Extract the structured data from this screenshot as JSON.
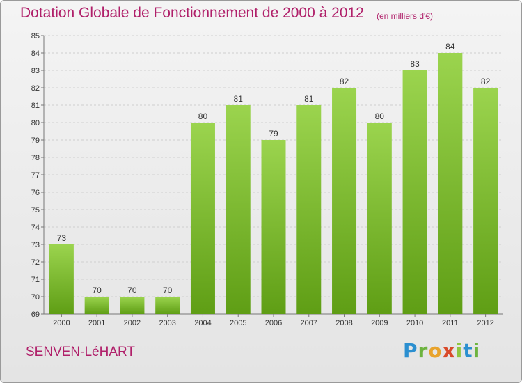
{
  "header": {
    "title": "Dotation Globale de Fonctionnement de 2000 à 2012",
    "unit": "(en milliers d'€)"
  },
  "footer": {
    "place": "SENVEN-LéHART",
    "logo": [
      "P",
      "r",
      "o",
      "x",
      "i",
      "t",
      "i"
    ]
  },
  "colors": {
    "title": "#b0206a",
    "bar_top": "#9bd44e",
    "bar_bottom": "#5f9e15",
    "grid": "#cfcfcf"
  },
  "chart_data": {
    "type": "bar",
    "categories": [
      "2000",
      "2001",
      "2002",
      "2003",
      "2004",
      "2005",
      "2006",
      "2007",
      "2008",
      "2009",
      "2010",
      "2011",
      "2012"
    ],
    "values": [
      73,
      70,
      70,
      70,
      80,
      81,
      79,
      81,
      82,
      80,
      83,
      84,
      82
    ],
    "data_labels": [
      "73",
      "70",
      "70",
      "70",
      "80",
      "81",
      "79",
      "81",
      "82",
      "80",
      "83",
      "84",
      "82"
    ],
    "yticks": [
      69,
      70,
      71,
      72,
      73,
      74,
      75,
      76,
      77,
      78,
      79,
      80,
      81,
      82,
      83,
      84,
      85
    ],
    "ylim": [
      69,
      85
    ],
    "title": "Dotation Globale de Fonctionnement de 2000 à 2012",
    "xlabel": "",
    "ylabel": "",
    "grid": true,
    "legend": "none"
  }
}
